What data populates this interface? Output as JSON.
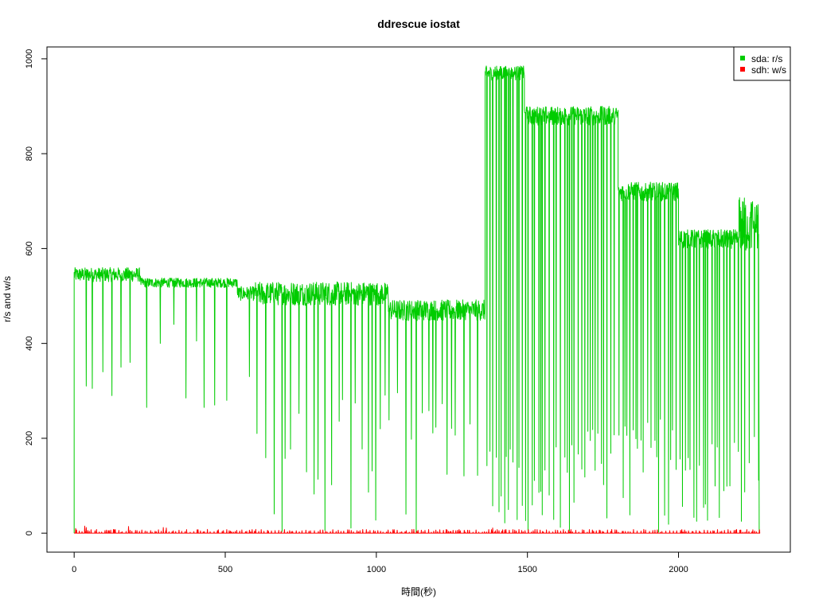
{
  "chart_data": {
    "type": "line",
    "title": "ddrescue iostat",
    "xlabel": "時間(秒)",
    "ylabel": "r/s and w/s",
    "xlim": [
      -90,
      2370
    ],
    "ylim": [
      -40,
      1025
    ],
    "x_ticks": [
      0,
      500,
      1000,
      1500,
      2000
    ],
    "y_ticks": [
      0,
      200,
      400,
      600,
      800,
      1000
    ],
    "grid": false,
    "legend_position": "top-right",
    "series": [
      {
        "name": "sda: r/s",
        "color": "#00cc00",
        "segments": [
          {
            "x_start": 0,
            "x_end": 220,
            "base": 545,
            "amp": 15,
            "dips": [
              [
                40,
                310
              ],
              [
                60,
                305
              ],
              [
                95,
                340
              ],
              [
                125,
                290
              ],
              [
                155,
                350
              ],
              [
                185,
                360
              ]
            ]
          },
          {
            "x_start": 220,
            "x_end": 540,
            "base": 528,
            "amp": 10,
            "dips": [
              [
                240,
                265
              ],
              [
                285,
                400
              ],
              [
                330,
                440
              ],
              [
                370,
                285
              ],
              [
                405,
                405
              ],
              [
                430,
                265
              ],
              [
                465,
                270
              ],
              [
                505,
                280
              ]
            ]
          },
          {
            "x_start": 540,
            "x_end": 600,
            "base": 505,
            "amp": 15,
            "dips": [
              [
                580,
                330
              ]
            ]
          },
          {
            "x_start": 600,
            "x_end": 1040,
            "base": 505,
            "amp": 25,
            "dip_every": 20,
            "dip_min": 0,
            "dip_max": 300
          },
          {
            "x_start": 1040,
            "x_end": 1360,
            "base": 470,
            "amp": 22,
            "dip_every": 20,
            "dip_min": 0,
            "dip_max": 330
          },
          {
            "x_start": 1360,
            "x_end": 1490,
            "base": 970,
            "amp": 15,
            "dip_every": 10,
            "dip_min": 0,
            "dip_max": 200
          },
          {
            "x_start": 1490,
            "x_end": 1800,
            "base": 880,
            "amp": 20,
            "dip_every": 10,
            "dip_min": 0,
            "dip_max": 250
          },
          {
            "x_start": 1800,
            "x_end": 2000,
            "base": 720,
            "amp": 20,
            "dip_every": 10,
            "dip_min": 0,
            "dip_max": 250
          },
          {
            "x_start": 2000,
            "x_end": 2200,
            "base": 620,
            "amp": 20,
            "dip_every": 10,
            "dip_min": 0,
            "dip_max": 200
          },
          {
            "x_start": 2200,
            "x_end": 2265,
            "base": 650,
            "amp": 60,
            "dip_every": 12,
            "dip_min": 0,
            "dip_max": 220
          }
        ],
        "start": [
          [
            0,
            0
          ]
        ],
        "end": [
          [
            2265,
            630
          ],
          [
            2267,
            0
          ]
        ]
      },
      {
        "name": "sdh: w/s",
        "color": "#ff0000",
        "segments": [
          {
            "x_start": 0,
            "x_end": 2270,
            "base": 0,
            "amp": 0,
            "spike_every": 10,
            "spike_min": 2,
            "spike_max": 8,
            "big_spikes": [
              [
                5,
                10
              ],
              [
                35,
                15
              ],
              [
                40,
                12
              ],
              [
                180,
                14
              ],
              [
                295,
                12
              ],
              [
                305,
                11
              ],
              [
                1385,
                11
              ]
            ]
          }
        ],
        "start": [
          [
            0,
            0
          ]
        ],
        "end": [
          [
            2270,
            0
          ]
        ]
      }
    ]
  }
}
